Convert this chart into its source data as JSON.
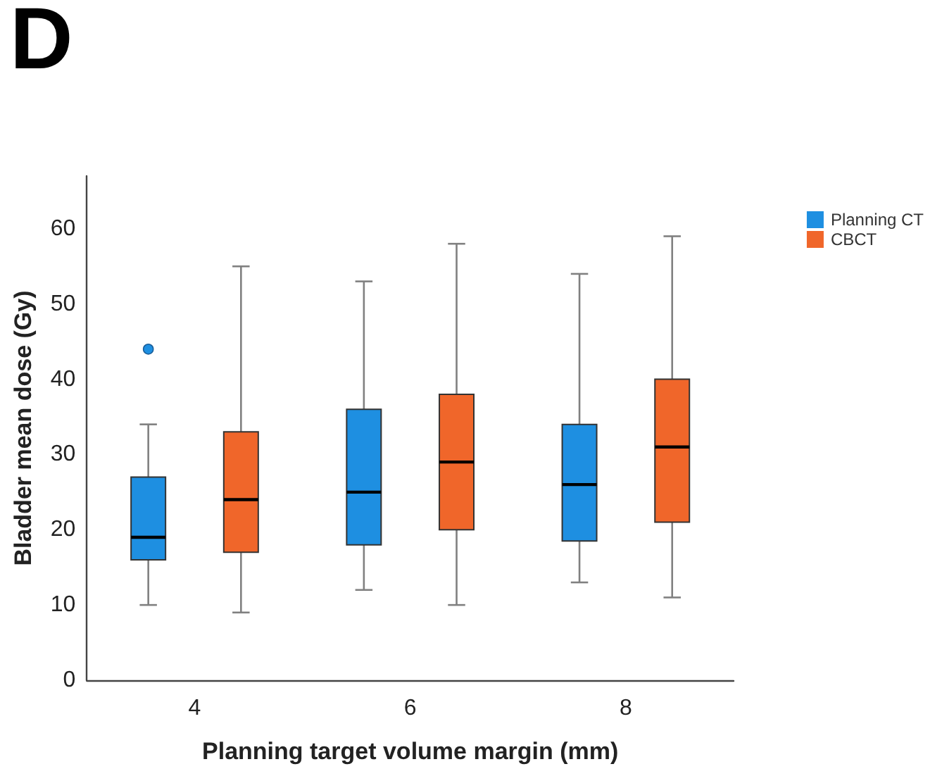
{
  "chart_data": {
    "type": "box",
    "title": "D",
    "xlabel": "Planning target volume margin (mm)",
    "ylabel": "Bladder mean dose (Gy)",
    "categories": [
      "4",
      "6",
      "8"
    ],
    "series": [
      {
        "name": "Planning CT",
        "color": "#1e8fe1",
        "boxes": [
          {
            "low": 10,
            "q1": 16,
            "median": 19,
            "q3": 27,
            "high": 34,
            "outliers": [
              44
            ]
          },
          {
            "low": 12,
            "q1": 18,
            "median": 25,
            "q3": 36,
            "high": 53
          },
          {
            "low": 13,
            "q1": 18.5,
            "median": 26,
            "q3": 34,
            "high": 54
          }
        ]
      },
      {
        "name": "CBCT",
        "color": "#f0662a",
        "boxes": [
          {
            "low": 9,
            "q1": 17,
            "median": 24,
            "q3": 33,
            "high": 55
          },
          {
            "low": 10,
            "q1": 20,
            "median": 29,
            "q3": 38,
            "high": 58
          },
          {
            "low": 11,
            "q1": 21,
            "median": 31,
            "q3": 40,
            "high": 59
          }
        ]
      }
    ],
    "ylim": [
      0,
      67
    ],
    "yticks": [
      0,
      10,
      20,
      30,
      40,
      50,
      60
    ],
    "grid": false,
    "legend": "top right"
  }
}
